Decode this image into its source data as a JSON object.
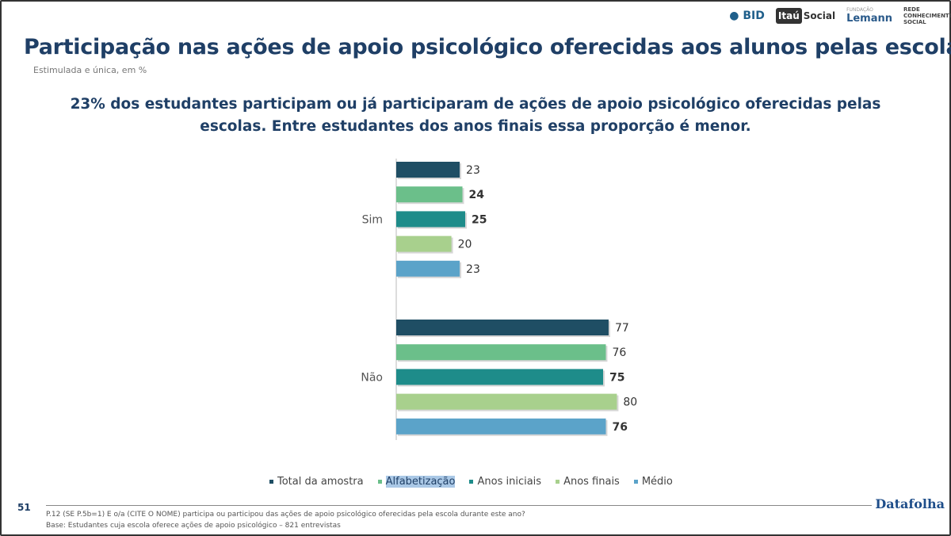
{
  "title": "Participação nas ações de apoio psicológico oferecidas aos alunos pelas escolas",
  "subtitle": "Estimulada e única, em %",
  "headline": "23% dos estudantes participam ou já participaram de ações de apoio psicológico oferecidas pelas escolas. Entre estudantes dos anos finais essa proporção é menor.",
  "logos": {
    "bid": "BID",
    "itau_box": "Itaú",
    "itau_text": "Social",
    "lemann_small": "FUNDAÇÃO",
    "lemann": "Lemann",
    "rede": "REDE CONHECIMENTO SOCIAL"
  },
  "footer": {
    "page": "51",
    "question": "P.12 (SE P.5b=1) E o/a (CITE O NOME) participa ou participou das ações de apoio psicológico oferecidas pela escola durante este ano?",
    "base": "Base: Estudantes cuja escola oferece ações de apoio psicológico – 821 entrevistas",
    "brand": "Datafolha"
  },
  "chart_data": {
    "type": "bar",
    "orientation": "horizontal",
    "categories": [
      "Sim",
      "Não"
    ],
    "series": [
      {
        "name": "Total da amostra",
        "color": "#1f4e64",
        "values": [
          23,
          77
        ]
      },
      {
        "name": "Alfabetização",
        "color": "#6bbf8a",
        "values": [
          24,
          76
        ]
      },
      {
        "name": "Anos iniciais",
        "color": "#1e8c8a",
        "values": [
          25,
          75
        ]
      },
      {
        "name": "Anos finais",
        "color": "#a8d08d",
        "values": [
          20,
          80
        ]
      },
      {
        "name": "Médio",
        "color": "#5ba3c9",
        "values": [
          23,
          76
        ]
      }
    ],
    "xlim": [
      0,
      100
    ],
    "grid": false,
    "legend_position": "bottom",
    "data_labels": true
  }
}
